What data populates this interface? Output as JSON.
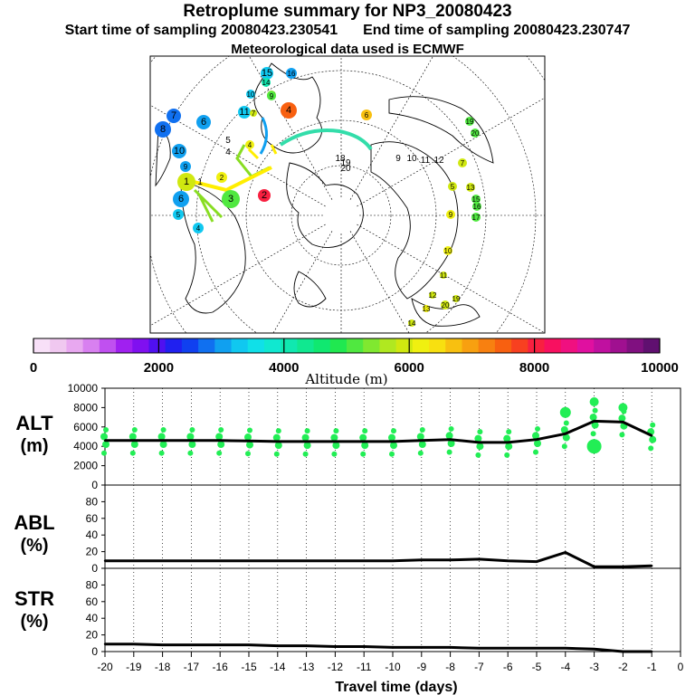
{
  "header": {
    "title": "Retroplume summary for NP3_20080423",
    "start_label": "Start time of sampling 20080423.230541",
    "end_label": "End time of sampling 20080423.230747",
    "met_label": "Meteorological data used is ECMWF"
  },
  "colors": {
    "track": "#000000",
    "plume_dot": "#22ee55",
    "map_track_yellow": "#ffee00",
    "map_track_green": "#88dd22",
    "map_track_cyan": "#33ddaa",
    "colorbar": [
      "#f8e0f8",
      "#f0c8f0",
      "#e8a8f0",
      "#d880f0",
      "#c050f0",
      "#a020f0",
      "#8010f0",
      "#5010f0",
      "#2020f0",
      "#1040f0",
      "#1070f0",
      "#10a0f0",
      "#10c8f0",
      "#10e0e8",
      "#10e8d0",
      "#10e8b0",
      "#10e890",
      "#10e870",
      "#20e850",
      "#50e840",
      "#80e830",
      "#b0e820",
      "#d0e810",
      "#f0f010",
      "#f8e010",
      "#f8c010",
      "#f8a010",
      "#f88010",
      "#f86010",
      "#f84020",
      "#f82040",
      "#f81060",
      "#f01080",
      "#e010a0",
      "#c010a0",
      "#a01090",
      "#801080",
      "#601070"
    ]
  },
  "colorbar": {
    "tick_labels": [
      "0",
      "2000",
      "4000",
      "6000",
      "8000",
      "10000"
    ],
    "label": "Altitude (m)"
  },
  "map": {
    "markers": [
      {
        "n": "15",
        "c": "#10c8f0"
      },
      {
        "n": "16",
        "c": "#10a0f0"
      },
      {
        "n": "14",
        "c": "#10e8b0"
      },
      {
        "n": "13",
        "c": "#80e830"
      },
      {
        "n": "10",
        "c": "#10c8f0"
      },
      {
        "n": "9",
        "c": "#50e840"
      },
      {
        "n": "11",
        "c": "#10c8f0"
      },
      {
        "n": "7",
        "c": "#d0e810"
      },
      {
        "n": "4",
        "c": "#f86010"
      },
      {
        "n": "7",
        "c": "#1070f0"
      },
      {
        "n": "6",
        "c": "#10a0f0"
      },
      {
        "n": "8",
        "c": "#1070f0"
      },
      {
        "n": "10",
        "c": "#10a0f0"
      },
      {
        "n": "9",
        "c": "#10a0f0"
      },
      {
        "n": "1",
        "c": "#d0e810"
      },
      {
        "n": "6",
        "c": "#10a0f0"
      },
      {
        "n": "5",
        "c": "#10c8f0"
      },
      {
        "n": "4",
        "c": "#10c8f0"
      },
      {
        "n": "2",
        "c": "#f0f010"
      },
      {
        "n": "3",
        "c": "#50e840"
      },
      {
        "n": "2",
        "c": "#f82040"
      },
      {
        "n": "4",
        "c": "#f0f010"
      },
      {
        "n": "6",
        "c": "#f8c010"
      },
      {
        "n": "19",
        "c": "#50e840"
      },
      {
        "n": "20",
        "c": "#50e840"
      },
      {
        "n": "7",
        "c": "#d0e810"
      },
      {
        "n": "5",
        "c": "#d0e810"
      },
      {
        "n": "13",
        "c": "#d0e810"
      },
      {
        "n": "15",
        "c": "#50e840"
      },
      {
        "n": "16",
        "c": "#50e840"
      },
      {
        "n": "17",
        "c": "#50e840"
      },
      {
        "n": "9",
        "c": "#f0f010"
      },
      {
        "n": "10",
        "c": "#f0f010"
      },
      {
        "n": "11",
        "c": "#d0e810"
      },
      {
        "n": "12",
        "c": "#d0e810"
      },
      {
        "n": "20",
        "c": "#d0e810"
      },
      {
        "n": "13",
        "c": "#f0f010"
      },
      {
        "n": "14",
        "c": "#d0e810"
      },
      {
        "n": "19",
        "c": "#d0e810"
      }
    ],
    "plain_numbers": [
      "5",
      "4",
      "18",
      "19",
      "20",
      "1",
      "9",
      "10",
      "11",
      "12"
    ]
  },
  "chart_data": {
    "type": "line",
    "x": [
      -20,
      -19,
      -18,
      -17,
      -16,
      -15,
      -14,
      -13,
      -12,
      -11,
      -10,
      -9,
      -8,
      -7,
      -6,
      -5,
      -4,
      -3,
      -2,
      -1
    ],
    "xlabel": "Travel time (days)",
    "xlim": [
      -20,
      0
    ],
    "x_tick_labels": [
      "-20",
      "-19",
      "-18",
      "-17",
      "-16",
      "-15",
      "-14",
      "-13",
      "-12",
      "-11",
      "-10",
      "-9",
      "-8",
      "-7",
      "-6",
      "-5",
      "-4",
      "-3",
      "-2",
      "-1",
      "0"
    ],
    "panels": [
      {
        "id": "alt",
        "label_top": "ALT",
        "label_bottom": "(m)",
        "ylim": [
          0,
          10000
        ],
        "y_tick_labels": [
          "0",
          "2000",
          "4000",
          "6000",
          "8000",
          "10000"
        ],
        "values": [
          4600,
          4600,
          4600,
          4600,
          4600,
          4550,
          4500,
          4500,
          4500,
          4500,
          4500,
          4600,
          4700,
          4400,
          4400,
          4700,
          5300,
          6600,
          6500,
          5100
        ]
      },
      {
        "id": "abl",
        "label_top": "ABL",
        "label_bottom": "(%)",
        "ylim": [
          0,
          100
        ],
        "y_tick_labels": [
          "0",
          "20",
          "40",
          "60",
          "80"
        ],
        "values": [
          9,
          9,
          9,
          9,
          9,
          9,
          9,
          9,
          9,
          9,
          9,
          10,
          10,
          11,
          9,
          8,
          19,
          2,
          2,
          3
        ]
      },
      {
        "id": "str",
        "label_top": "STR",
        "label_bottom": "(%)",
        "ylim": [
          0,
          100
        ],
        "y_tick_labels": [
          "0",
          "20",
          "40",
          "60",
          "80"
        ],
        "values": [
          9,
          9,
          8,
          8,
          8,
          8,
          7,
          7,
          6,
          6,
          5,
          5,
          5,
          4,
          4,
          4,
          4,
          3,
          0,
          0
        ]
      }
    ],
    "grid": "vertical dotted"
  }
}
